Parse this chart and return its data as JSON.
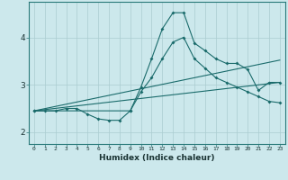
{
  "xlabel": "Humidex (Indice chaleur)",
  "bg_color": "#cce8ec",
  "line_color": "#1a6b6b",
  "grid_color": "#aaccd0",
  "xlim": [
    -0.5,
    23.5
  ],
  "ylim": [
    1.75,
    4.75
  ],
  "xtick_labels": [
    "0",
    "1",
    "2",
    "3",
    "4",
    "5",
    "6",
    "7",
    "8",
    "9",
    "10",
    "11",
    "12",
    "13",
    "14",
    "15",
    "16",
    "17",
    "18",
    "19",
    "20",
    "21",
    "22",
    "23"
  ],
  "ytick_values": [
    2,
    3,
    4
  ],
  "curve1_x": [
    0,
    1,
    2,
    3,
    4,
    5,
    6,
    7,
    8,
    9,
    10,
    11,
    12,
    13,
    14,
    15,
    16,
    17,
    18,
    19,
    20,
    21,
    22,
    23
  ],
  "curve1_y": [
    2.45,
    2.45,
    2.45,
    2.5,
    2.5,
    2.38,
    2.28,
    2.25,
    2.25,
    2.45,
    2.95,
    3.55,
    4.18,
    4.52,
    4.52,
    3.88,
    3.72,
    3.55,
    3.45,
    3.45,
    3.32,
    2.88,
    3.05,
    3.05
  ],
  "curve2_x": [
    0,
    9,
    10,
    11,
    12,
    13,
    14,
    15,
    16,
    17,
    18,
    19,
    20,
    21,
    22,
    23
  ],
  "curve2_y": [
    2.45,
    2.45,
    2.85,
    3.15,
    3.55,
    3.9,
    4.0,
    3.55,
    3.35,
    3.15,
    3.05,
    2.95,
    2.85,
    2.75,
    2.65,
    2.62
  ],
  "curve3_x": [
    0,
    23
  ],
  "curve3_y": [
    2.45,
    3.52
  ],
  "curve4_x": [
    0,
    23
  ],
  "curve4_y": [
    2.45,
    3.05
  ]
}
